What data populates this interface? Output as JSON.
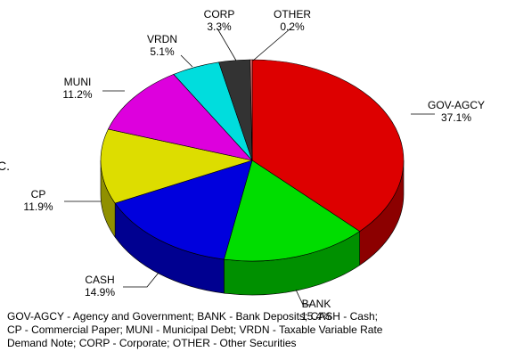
{
  "edge_fragment": "C.",
  "footnote": {
    "line1": "GOV-AGCY - Agency and Government; BANK - Bank Deposits; CASH - Cash;",
    "line2": "CP - Commercial Paper; MUNI - Municipal Debt; VRDN - Taxable Variable Rate",
    "line3": "Demand Note; CORP - Corporate; OTHER - Other Securities"
  },
  "chart_data": {
    "type": "pie",
    "style": "3d",
    "title": "",
    "slices": [
      {
        "label": "GOV-AGCY",
        "value": 37.1,
        "display": "37.1%",
        "color": "#dd0000",
        "side": "#8c0000"
      },
      {
        "label": "BANK",
        "value": 15.4,
        "display": "15.4%",
        "color": "#00dd00",
        "side": "#009000"
      },
      {
        "label": "CASH",
        "value": 14.9,
        "display": "14.9%",
        "color": "#0000dd",
        "side": "#000090"
      },
      {
        "label": "CP",
        "value": 11.9,
        "display": "11.9%",
        "color": "#dddd00",
        "side": "#909000"
      },
      {
        "label": "MUNI",
        "value": 11.2,
        "display": "11.2%",
        "color": "#dd00dd",
        "side": "#900090"
      },
      {
        "label": "VRDN",
        "value": 5.1,
        "display": "5.1%",
        "color": "#00dddd",
        "side": "#009090"
      },
      {
        "label": "CORP",
        "value": 3.3,
        "display": "3.3%",
        "color": "#333333",
        "side": "#1a1a1a"
      },
      {
        "label": "OTHER",
        "value": 0.2,
        "display": "0.2%",
        "color": "#ff8080",
        "side": "#b05050"
      }
    ]
  }
}
